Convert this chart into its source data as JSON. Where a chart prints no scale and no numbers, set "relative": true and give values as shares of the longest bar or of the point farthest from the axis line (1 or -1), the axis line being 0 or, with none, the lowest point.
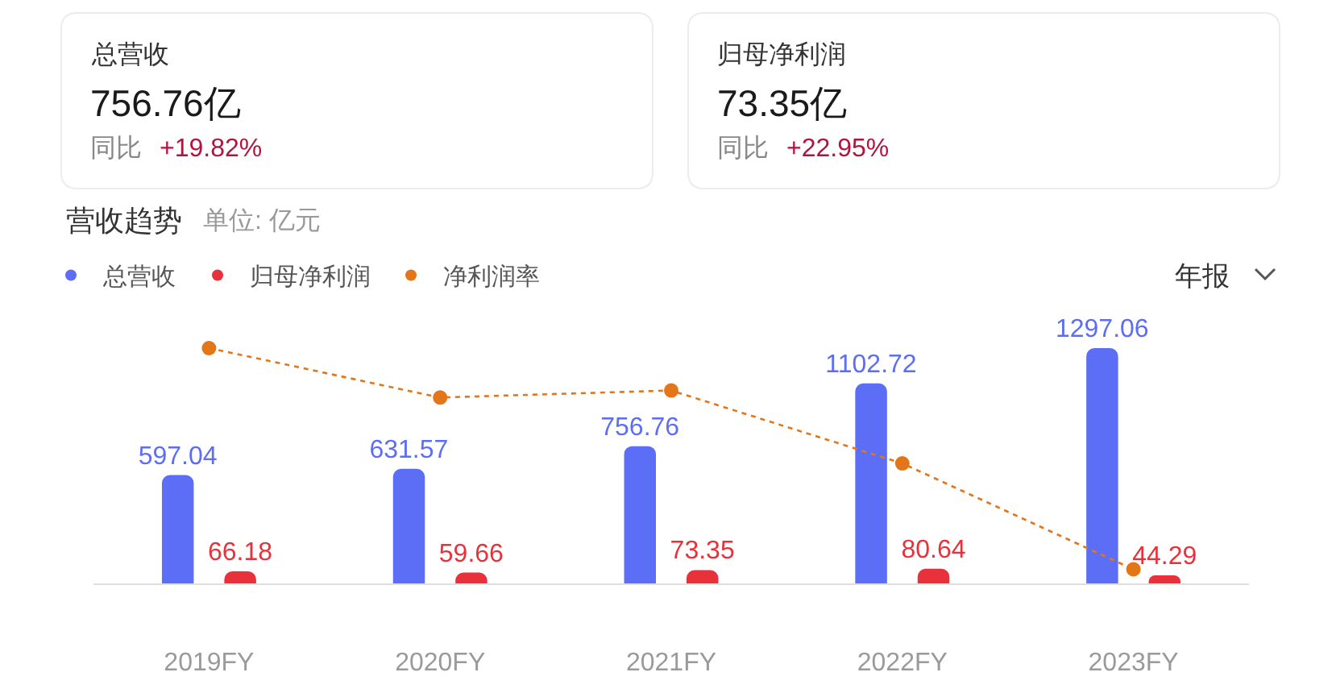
{
  "chart_data": [
    {
      "type": "other",
      "title": "总营收",
      "annotations": [
        "756.76亿",
        "同比",
        "+19.82%"
      ]
    },
    {
      "type": "other",
      "title": "归母净利润",
      "annotations": [
        "73.35亿",
        "同比",
        "+22.95%"
      ]
    },
    {
      "type": "bar",
      "title": "营收趋势",
      "subtitle": "单位: 亿元",
      "categories": [
        "2019FY",
        "2020FY",
        "2021FY",
        "2022FY",
        "2023FY"
      ],
      "series": [
        {
          "name": "总营收",
          "color": "#5b6ef5",
          "values": [
            597.04,
            631.57,
            756.76,
            1102.72,
            1297.06
          ],
          "value_labels": [
            "597.04",
            "631.57",
            "756.76",
            "1102.72",
            "1297.06"
          ]
        },
        {
          "name": "归母净利润",
          "color": "#e8313a",
          "values": [
            66.18,
            59.66,
            73.35,
            80.64,
            44.29
          ],
          "value_labels": [
            "66.18",
            "59.66",
            "73.35",
            "80.64",
            "44.29"
          ]
        }
      ],
      "legend": "top left",
      "annotations": [
        "年报"
      ]
    },
    {
      "type": "line",
      "relative": true,
      "categories": [
        null,
        null,
        null,
        null,
        null
      ],
      "series": [
        {
          "name": "净利润率",
          "color": "#e4761a",
          "values": [
            1,
            0.79,
            0.82,
            0.51,
            0.06
          ]
        }
      ],
      "marker": "circle",
      "line_style": "dotted",
      "legend": "top left"
    }
  ]
}
